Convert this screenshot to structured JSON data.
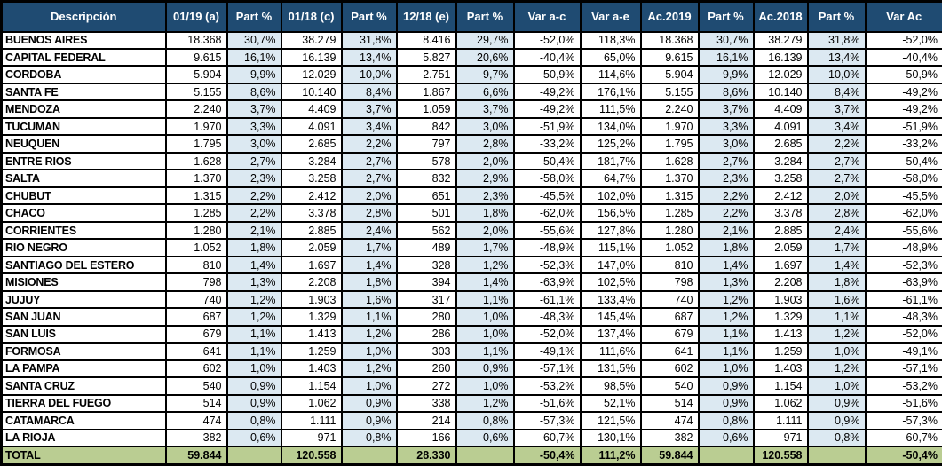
{
  "styles": {
    "header_bg": "#1F4B72",
    "header_text": "#FFFFFF",
    "row_bg": "#FFFFFF",
    "part_bg": "#DCE9F2",
    "total_bg": "#BACD92",
    "border": "#000000",
    "text": "#000000"
  },
  "chart_data": {
    "type": "table",
    "columns": [
      "Descripción",
      "01/19 (a)",
      "Part %",
      "01/18 (c)",
      "Part %",
      "12/18 (e)",
      "Part %",
      "Var a-c",
      "Var a-e",
      "Ac.2019",
      "Part %",
      "Ac.2018",
      "Part %",
      "Var Ac"
    ],
    "rows": [
      [
        "BUENOS AIRES",
        "18.368",
        "30,7%",
        "38.279",
        "31,8%",
        "8.416",
        "29,7%",
        "-52,0%",
        "118,3%",
        "18.368",
        "30,7%",
        "38.279",
        "31,8%",
        "-52,0%"
      ],
      [
        "CAPITAL FEDERAL",
        "9.615",
        "16,1%",
        "16.139",
        "13,4%",
        "5.827",
        "20,6%",
        "-40,4%",
        "65,0%",
        "9.615",
        "16,1%",
        "16.139",
        "13,4%",
        "-40,4%"
      ],
      [
        "CORDOBA",
        "5.904",
        "9,9%",
        "12.029",
        "10,0%",
        "2.751",
        "9,7%",
        "-50,9%",
        "114,6%",
        "5.904",
        "9,9%",
        "12.029",
        "10,0%",
        "-50,9%"
      ],
      [
        "SANTA FE",
        "5.155",
        "8,6%",
        "10.140",
        "8,4%",
        "1.867",
        "6,6%",
        "-49,2%",
        "176,1%",
        "5.155",
        "8,6%",
        "10.140",
        "8,4%",
        "-49,2%"
      ],
      [
        "MENDOZA",
        "2.240",
        "3,7%",
        "4.409",
        "3,7%",
        "1.059",
        "3,7%",
        "-49,2%",
        "111,5%",
        "2.240",
        "3,7%",
        "4.409",
        "3,7%",
        "-49,2%"
      ],
      [
        "TUCUMAN",
        "1.970",
        "3,3%",
        "4.091",
        "3,4%",
        "842",
        "3,0%",
        "-51,9%",
        "134,0%",
        "1.970",
        "3,3%",
        "4.091",
        "3,4%",
        "-51,9%"
      ],
      [
        "NEUQUEN",
        "1.795",
        "3,0%",
        "2.685",
        "2,2%",
        "797",
        "2,8%",
        "-33,2%",
        "125,2%",
        "1.795",
        "3,0%",
        "2.685",
        "2,2%",
        "-33,2%"
      ],
      [
        "ENTRE RIOS",
        "1.628",
        "2,7%",
        "3.284",
        "2,7%",
        "578",
        "2,0%",
        "-50,4%",
        "181,7%",
        "1.628",
        "2,7%",
        "3.284",
        "2,7%",
        "-50,4%"
      ],
      [
        "SALTA",
        "1.370",
        "2,3%",
        "3.258",
        "2,7%",
        "832",
        "2,9%",
        "-58,0%",
        "64,7%",
        "1.370",
        "2,3%",
        "3.258",
        "2,7%",
        "-58,0%"
      ],
      [
        "CHUBUT",
        "1.315",
        "2,2%",
        "2.412",
        "2,0%",
        "651",
        "2,3%",
        "-45,5%",
        "102,0%",
        "1.315",
        "2,2%",
        "2.412",
        "2,0%",
        "-45,5%"
      ],
      [
        "CHACO",
        "1.285",
        "2,2%",
        "3.378",
        "2,8%",
        "501",
        "1,8%",
        "-62,0%",
        "156,5%",
        "1.285",
        "2,2%",
        "3.378",
        "2,8%",
        "-62,0%"
      ],
      [
        "CORRIENTES",
        "1.280",
        "2,1%",
        "2.885",
        "2,4%",
        "562",
        "2,0%",
        "-55,6%",
        "127,8%",
        "1.280",
        "2,1%",
        "2.885",
        "2,4%",
        "-55,6%"
      ],
      [
        "RIO NEGRO",
        "1.052",
        "1,8%",
        "2.059",
        "1,7%",
        "489",
        "1,7%",
        "-48,9%",
        "115,1%",
        "1.052",
        "1,8%",
        "2.059",
        "1,7%",
        "-48,9%"
      ],
      [
        "SANTIAGO DEL ESTERO",
        "810",
        "1,4%",
        "1.697",
        "1,4%",
        "328",
        "1,2%",
        "-52,3%",
        "147,0%",
        "810",
        "1,4%",
        "1.697",
        "1,4%",
        "-52,3%"
      ],
      [
        "MISIONES",
        "798",
        "1,3%",
        "2.208",
        "1,8%",
        "394",
        "1,4%",
        "-63,9%",
        "102,5%",
        "798",
        "1,3%",
        "2.208",
        "1,8%",
        "-63,9%"
      ],
      [
        "JUJUY",
        "740",
        "1,2%",
        "1.903",
        "1,6%",
        "317",
        "1,1%",
        "-61,1%",
        "133,4%",
        "740",
        "1,2%",
        "1.903",
        "1,6%",
        "-61,1%"
      ],
      [
        "SAN JUAN",
        "687",
        "1,2%",
        "1.329",
        "1,1%",
        "280",
        "1,0%",
        "-48,3%",
        "145,4%",
        "687",
        "1,2%",
        "1.329",
        "1,1%",
        "-48,3%"
      ],
      [
        "SAN LUIS",
        "679",
        "1,1%",
        "1.413",
        "1,2%",
        "286",
        "1,0%",
        "-52,0%",
        "137,4%",
        "679",
        "1,1%",
        "1.413",
        "1,2%",
        "-52,0%"
      ],
      [
        "FORMOSA",
        "641",
        "1,1%",
        "1.259",
        "1,0%",
        "303",
        "1,1%",
        "-49,1%",
        "111,6%",
        "641",
        "1,1%",
        "1.259",
        "1,0%",
        "-49,1%"
      ],
      [
        "LA PAMPA",
        "602",
        "1,0%",
        "1.403",
        "1,2%",
        "260",
        "0,9%",
        "-57,1%",
        "131,5%",
        "602",
        "1,0%",
        "1.403",
        "1,2%",
        "-57,1%"
      ],
      [
        "SANTA CRUZ",
        "540",
        "0,9%",
        "1.154",
        "1,0%",
        "272",
        "1,0%",
        "-53,2%",
        "98,5%",
        "540",
        "0,9%",
        "1.154",
        "1,0%",
        "-53,2%"
      ],
      [
        "TIERRA DEL FUEGO",
        "514",
        "0,9%",
        "1.062",
        "0,9%",
        "338",
        "1,2%",
        "-51,6%",
        "52,1%",
        "514",
        "0,9%",
        "1.062",
        "0,9%",
        "-51,6%"
      ],
      [
        "CATAMARCA",
        "474",
        "0,8%",
        "1.111",
        "0,9%",
        "214",
        "0,8%",
        "-57,3%",
        "121,5%",
        "474",
        "0,8%",
        "1.111",
        "0,9%",
        "-57,3%"
      ],
      [
        "LA RIOJA",
        "382",
        "0,6%",
        "971",
        "0,8%",
        "166",
        "0,6%",
        "-60,7%",
        "130,1%",
        "382",
        "0,6%",
        "971",
        "0,8%",
        "-60,7%"
      ],
      [
        "TOTAL",
        "59.844",
        "",
        "120.558",
        "",
        "28.330",
        "",
        "-50,4%",
        "111,2%",
        "59.844",
        "",
        "120.558",
        "",
        "-50,4%"
      ]
    ]
  }
}
